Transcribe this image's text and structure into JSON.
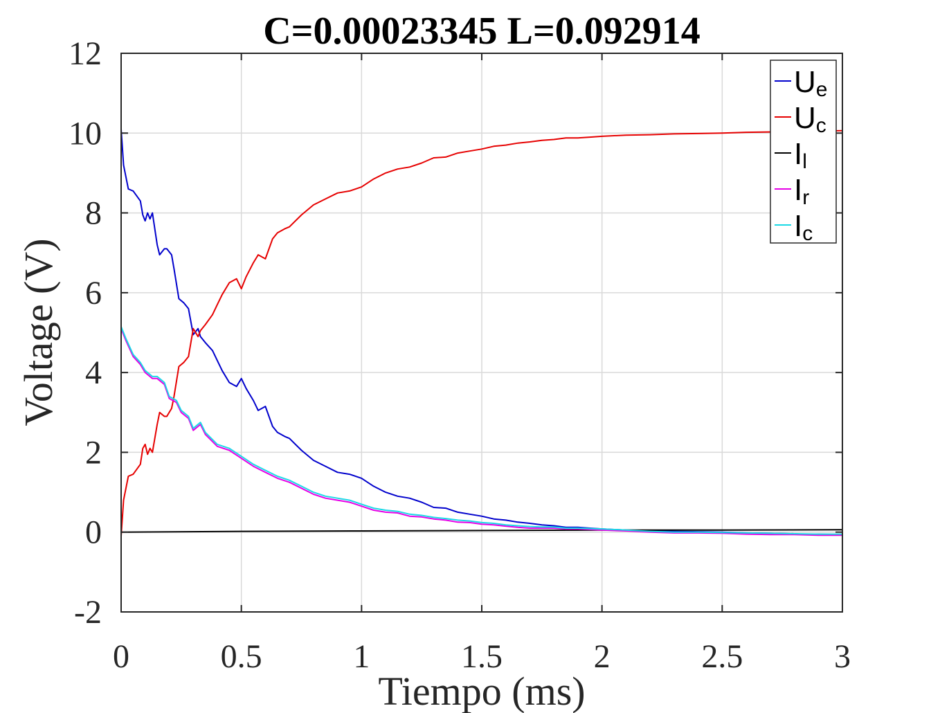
{
  "chart_data": {
    "type": "line",
    "title": "C=0.00023345 L=0.092914",
    "xlabel": "Tiempo (ms)",
    "ylabel": "Voltage (V)",
    "xlim": [
      0,
      3
    ],
    "ylim": [
      -2,
      12
    ],
    "xticks": [
      0,
      0.5,
      1,
      1.5,
      2,
      2.5,
      3
    ],
    "xtick_labels": [
      "0",
      "0.5",
      "1",
      "1.5",
      "2",
      "2.5",
      "3"
    ],
    "yticks": [
      -2,
      0,
      2,
      4,
      6,
      8,
      10,
      12
    ],
    "ytick_labels": [
      "-2",
      "0",
      "2",
      "4",
      "6",
      "8",
      "10",
      "12"
    ],
    "grid": true,
    "legend_position": "top-right",
    "series": [
      {
        "name": "U",
        "sub": "e",
        "color": "#0000cc",
        "x": [
          0,
          0.01,
          0.03,
          0.05,
          0.08,
          0.09,
          0.1,
          0.11,
          0.12,
          0.13,
          0.15,
          0.16,
          0.18,
          0.19,
          0.21,
          0.22,
          0.24,
          0.26,
          0.28,
          0.3,
          0.32,
          0.33,
          0.35,
          0.38,
          0.4,
          0.42,
          0.45,
          0.48,
          0.5,
          0.52,
          0.55,
          0.57,
          0.6,
          0.63,
          0.65,
          0.68,
          0.7,
          0.75,
          0.8,
          0.85,
          0.9,
          0.95,
          1.0,
          1.05,
          1.1,
          1.15,
          1.2,
          1.25,
          1.3,
          1.35,
          1.4,
          1.45,
          1.5,
          1.55,
          1.6,
          1.65,
          1.7,
          1.75,
          1.8,
          1.85,
          1.9,
          1.95,
          2.0,
          2.1,
          2.2,
          2.3,
          2.4,
          2.5,
          2.6,
          2.7,
          2.8,
          2.85,
          2.9,
          3.0
        ],
        "y": [
          10.1,
          9.2,
          8.6,
          8.55,
          8.3,
          7.95,
          7.8,
          8.0,
          7.85,
          8.0,
          7.2,
          6.95,
          7.1,
          7.1,
          6.95,
          6.6,
          5.85,
          5.75,
          5.6,
          4.95,
          5.1,
          4.9,
          4.75,
          4.55,
          4.3,
          4.05,
          3.75,
          3.65,
          3.85,
          3.6,
          3.3,
          3.05,
          3.15,
          2.65,
          2.5,
          2.4,
          2.35,
          2.05,
          1.8,
          1.65,
          1.5,
          1.45,
          1.35,
          1.15,
          1.0,
          0.9,
          0.85,
          0.75,
          0.62,
          0.6,
          0.5,
          0.45,
          0.4,
          0.33,
          0.3,
          0.25,
          0.22,
          0.18,
          0.16,
          0.12,
          0.12,
          0.1,
          0.08,
          0.05,
          0.04,
          0.02,
          0.01,
          0.0,
          -0.02,
          -0.03,
          -0.04,
          -0.06,
          -0.05,
          -0.06
        ]
      },
      {
        "name": "U",
        "sub": "c",
        "color": "#e60000",
        "x": [
          0,
          0.01,
          0.03,
          0.05,
          0.08,
          0.09,
          0.1,
          0.11,
          0.12,
          0.13,
          0.15,
          0.16,
          0.18,
          0.19,
          0.21,
          0.22,
          0.24,
          0.26,
          0.28,
          0.3,
          0.32,
          0.33,
          0.35,
          0.38,
          0.4,
          0.42,
          0.45,
          0.48,
          0.5,
          0.52,
          0.55,
          0.57,
          0.6,
          0.63,
          0.65,
          0.68,
          0.7,
          0.75,
          0.8,
          0.85,
          0.9,
          0.95,
          1.0,
          1.05,
          1.1,
          1.15,
          1.2,
          1.25,
          1.3,
          1.35,
          1.4,
          1.45,
          1.5,
          1.55,
          1.6,
          1.65,
          1.7,
          1.75,
          1.8,
          1.85,
          1.9,
          1.95,
          2.0,
          2.1,
          2.2,
          2.3,
          2.4,
          2.5,
          2.6,
          2.7,
          2.8,
          2.85,
          2.9,
          3.0
        ],
        "y": [
          -0.1,
          0.8,
          1.4,
          1.45,
          1.7,
          2.1,
          2.2,
          1.95,
          2.1,
          2.0,
          2.7,
          3.0,
          2.9,
          2.9,
          3.1,
          3.4,
          4.15,
          4.25,
          4.4,
          5.1,
          4.9,
          5.05,
          5.2,
          5.45,
          5.7,
          5.95,
          6.25,
          6.35,
          6.1,
          6.4,
          6.75,
          6.95,
          6.85,
          7.35,
          7.5,
          7.6,
          7.65,
          7.95,
          8.2,
          8.35,
          8.5,
          8.55,
          8.65,
          8.85,
          9.0,
          9.1,
          9.15,
          9.25,
          9.38,
          9.4,
          9.5,
          9.55,
          9.6,
          9.67,
          9.7,
          9.75,
          9.78,
          9.82,
          9.84,
          9.88,
          9.88,
          9.9,
          9.92,
          9.95,
          9.96,
          9.98,
          9.99,
          10.0,
          10.02,
          10.03,
          10.04,
          10.06,
          10.05,
          10.06
        ]
      },
      {
        "name": "I",
        "sub": "l",
        "color": "#000000",
        "x": [
          0,
          0.5,
          1.0,
          1.5,
          2.0,
          2.5,
          3.0
        ],
        "y": [
          0.0,
          0.02,
          0.03,
          0.04,
          0.05,
          0.05,
          0.06
        ]
      },
      {
        "name": "I",
        "sub": "r",
        "color": "#e600e6",
        "x": [
          0,
          0.02,
          0.05,
          0.08,
          0.1,
          0.13,
          0.15,
          0.18,
          0.2,
          0.23,
          0.25,
          0.28,
          0.3,
          0.33,
          0.35,
          0.4,
          0.45,
          0.5,
          0.55,
          0.6,
          0.65,
          0.7,
          0.75,
          0.8,
          0.85,
          0.9,
          0.95,
          1.0,
          1.05,
          1.1,
          1.15,
          1.2,
          1.25,
          1.3,
          1.35,
          1.4,
          1.45,
          1.5,
          1.55,
          1.6,
          1.65,
          1.7,
          1.75,
          1.8,
          1.85,
          1.9,
          2.0,
          2.1,
          2.2,
          2.3,
          2.4,
          2.5,
          2.6,
          2.7,
          2.8,
          2.9,
          3.0
        ],
        "y": [
          5.1,
          4.8,
          4.4,
          4.2,
          4.0,
          3.85,
          3.85,
          3.7,
          3.35,
          3.25,
          3.0,
          2.85,
          2.55,
          2.7,
          2.45,
          2.15,
          2.05,
          1.85,
          1.65,
          1.5,
          1.35,
          1.25,
          1.1,
          0.95,
          0.85,
          0.8,
          0.75,
          0.65,
          0.55,
          0.5,
          0.48,
          0.4,
          0.38,
          0.33,
          0.3,
          0.25,
          0.24,
          0.2,
          0.18,
          0.15,
          0.12,
          0.1,
          0.1,
          0.1,
          0.08,
          0.08,
          0.05,
          0.03,
          0.0,
          -0.02,
          -0.02,
          -0.03,
          -0.05,
          -0.06,
          -0.06,
          -0.08,
          -0.08
        ]
      },
      {
        "name": "I",
        "sub": "c",
        "color": "#1ad9e6",
        "x": [
          0,
          0.02,
          0.05,
          0.08,
          0.1,
          0.13,
          0.15,
          0.18,
          0.2,
          0.23,
          0.25,
          0.28,
          0.3,
          0.33,
          0.35,
          0.4,
          0.45,
          0.5,
          0.55,
          0.6,
          0.65,
          0.7,
          0.75,
          0.8,
          0.85,
          0.9,
          0.95,
          1.0,
          1.05,
          1.1,
          1.15,
          1.2,
          1.25,
          1.3,
          1.35,
          1.4,
          1.45,
          1.5,
          1.55,
          1.6,
          1.65,
          1.7,
          1.75,
          1.8,
          1.85,
          1.9,
          2.0,
          2.1,
          2.2,
          2.3,
          2.4,
          2.5,
          2.6,
          2.7,
          2.8,
          2.9,
          3.0
        ],
        "y": [
          5.15,
          4.85,
          4.45,
          4.25,
          4.05,
          3.9,
          3.9,
          3.75,
          3.4,
          3.3,
          3.05,
          2.9,
          2.6,
          2.75,
          2.5,
          2.2,
          2.1,
          1.9,
          1.7,
          1.55,
          1.4,
          1.3,
          1.15,
          1.0,
          0.9,
          0.85,
          0.8,
          0.7,
          0.6,
          0.55,
          0.52,
          0.45,
          0.42,
          0.37,
          0.34,
          0.3,
          0.28,
          0.24,
          0.22,
          0.18,
          0.16,
          0.14,
          0.13,
          0.13,
          0.1,
          0.1,
          0.08,
          0.05,
          0.02,
          0.0,
          0.0,
          -0.01,
          -0.02,
          -0.03,
          -0.04,
          -0.05,
          -0.05
        ]
      }
    ]
  }
}
